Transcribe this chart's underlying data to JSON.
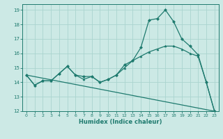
{
  "xlabel": "Humidex (Indice chaleur)",
  "background_color": "#cce9e5",
  "grid_color": "#aad4cf",
  "line_color": "#1e7a6e",
  "xlim": [
    -0.5,
    23.5
  ],
  "ylim": [
    12,
    19.4
  ],
  "yticks": [
    12,
    13,
    14,
    15,
    16,
    17,
    18,
    19
  ],
  "xticks": [
    0,
    1,
    2,
    3,
    4,
    5,
    6,
    7,
    8,
    9,
    10,
    11,
    12,
    13,
    14,
    15,
    16,
    17,
    18,
    19,
    20,
    21,
    22,
    23
  ],
  "line1_x": [
    0,
    1,
    2,
    3,
    4,
    5,
    6,
    7,
    8,
    9,
    10,
    11,
    12,
    13,
    14,
    15,
    16,
    17,
    18,
    19,
    20,
    21,
    22,
    23
  ],
  "line1_y": [
    14.5,
    13.8,
    14.1,
    14.1,
    14.6,
    15.1,
    14.5,
    14.2,
    14.4,
    14.0,
    14.2,
    14.5,
    15.0,
    15.5,
    15.8,
    16.1,
    16.3,
    16.5,
    16.5,
    16.3,
    16.0,
    15.8,
    14.0,
    12.0
  ],
  "line2_x": [
    0,
    1,
    2,
    3,
    4,
    5,
    6,
    7,
    8,
    9,
    10,
    11,
    12,
    13,
    14,
    15,
    16,
    17,
    18,
    19,
    20,
    21,
    22,
    23
  ],
  "line2_y": [
    14.5,
    13.8,
    14.1,
    14.1,
    14.6,
    15.1,
    14.5,
    14.4,
    14.4,
    14.0,
    14.2,
    14.5,
    15.2,
    15.5,
    16.4,
    18.3,
    18.4,
    19.0,
    18.2,
    17.0,
    16.5,
    15.9,
    14.0,
    12.0
  ],
  "line3_x": [
    0,
    23
  ],
  "line3_y": [
    14.5,
    12.0
  ]
}
